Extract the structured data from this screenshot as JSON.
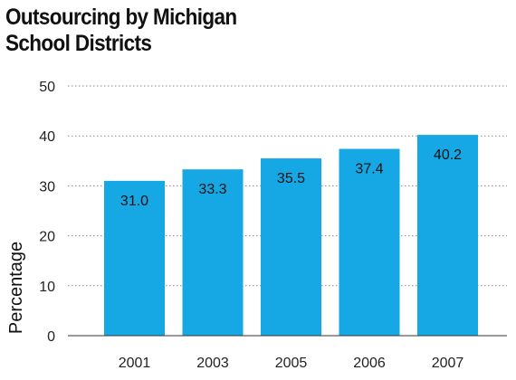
{
  "chart_data": {
    "type": "bar",
    "title_lines": [
      "Outsourcing by Michigan",
      "School Districts"
    ],
    "xlabel": "",
    "ylabel": "Percentage",
    "categories": [
      "2001",
      "2003",
      "2005",
      "2006",
      "2007"
    ],
    "values": [
      31.0,
      33.3,
      35.5,
      37.4,
      40.2
    ],
    "data_labels": [
      "31.0",
      "33.3",
      "35.5",
      "37.4",
      "40.2"
    ],
    "ylim": [
      0,
      50
    ],
    "yticks": [
      0,
      10,
      20,
      30,
      40,
      50
    ],
    "grid": true,
    "legend": "none",
    "colors": {
      "bar": "#16a8e5",
      "grid": "#888888",
      "axis": "#333333"
    }
  }
}
